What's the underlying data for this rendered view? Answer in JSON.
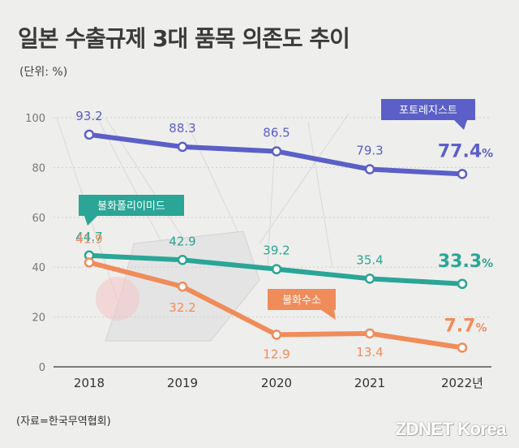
{
  "title": "일본 수출규제 3대 품목 의존도 추이",
  "unit_label": "(단위: %)",
  "source": "(자료=한국무역협회)",
  "brand": "ZDNET Korea",
  "colors": {
    "photoresist": "#5b5fc7",
    "polyimide": "#2aa596",
    "hydrogen_fluoride": "#f08c5a",
    "axis": "#555555",
    "grid": "#cfcfcf"
  },
  "chart_data": {
    "type": "line",
    "x": [
      "2018",
      "2019",
      "2020",
      "2021",
      "2022년"
    ],
    "yticks": [
      0,
      20,
      40,
      60,
      80,
      100
    ],
    "ylim": [
      0,
      100
    ],
    "grid": true,
    "series": [
      {
        "key": "photoresist",
        "name": "포토레지스트",
        "values": [
          93.2,
          88.3,
          86.5,
          79.3,
          77.4
        ],
        "last_label": "77.4",
        "last_unit": "%"
      },
      {
        "key": "polyimide",
        "name": "불화폴리이미드",
        "values": [
          44.7,
          42.9,
          39.2,
          35.4,
          33.3
        ],
        "last_label": "33.3",
        "last_unit": "%"
      },
      {
        "key": "hydrogen_fluoride",
        "name": "불화수소",
        "values": [
          41.9,
          32.2,
          12.9,
          13.4,
          7.7
        ],
        "last_label": "7.7",
        "last_unit": "%"
      }
    ]
  }
}
